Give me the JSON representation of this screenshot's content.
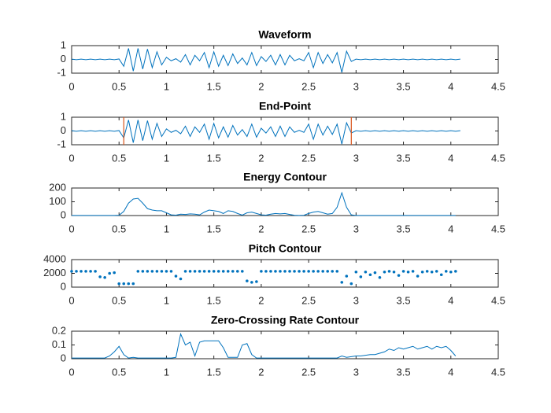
{
  "chart_data": [
    {
      "type": "line",
      "title": "Waveform",
      "color": "#0072bd",
      "x": [
        0,
        0.05,
        0.1,
        0.15,
        0.2,
        0.25,
        0.3,
        0.35,
        0.4,
        0.45,
        0.5,
        0.55,
        0.6,
        0.65,
        0.7,
        0.75,
        0.8,
        0.85,
        0.9,
        0.95,
        1,
        1.05,
        1.1,
        1.15,
        1.2,
        1.25,
        1.3,
        1.35,
        1.4,
        1.45,
        1.5,
        1.55,
        1.6,
        1.65,
        1.7,
        1.75,
        1.8,
        1.85,
        1.9,
        1.95,
        2,
        2.05,
        2.1,
        2.15,
        2.2,
        2.25,
        2.3,
        2.35,
        2.4,
        2.45,
        2.5,
        2.55,
        2.6,
        2.65,
        2.7,
        2.75,
        2.8,
        2.85,
        2.9,
        2.95,
        3,
        3.05,
        3.1,
        3.15,
        3.2,
        3.25,
        3.3,
        3.35,
        3.4,
        3.45,
        3.5,
        3.55,
        3.6,
        3.65,
        3.7,
        3.75,
        3.8,
        3.85,
        3.9,
        3.95,
        4,
        4.05,
        4.1
      ],
      "values": [
        0.02,
        -0.02,
        0.02,
        -0.02,
        0.02,
        -0.02,
        0.02,
        -0.02,
        0.02,
        -0.02,
        0.03,
        -0.5,
        0.8,
        -0.85,
        0.8,
        -0.7,
        0.75,
        -0.6,
        0.55,
        -0.4,
        0.15,
        -0.1,
        0.05,
        -0.2,
        0.35,
        -0.4,
        0.3,
        -0.1,
        0.5,
        -0.6,
        0.55,
        -0.5,
        0.3,
        -0.45,
        0.4,
        -0.3,
        0.1,
        -0.4,
        0.5,
        -0.45,
        0.2,
        -0.15,
        0.3,
        -0.4,
        0.35,
        -0.4,
        0.3,
        -0.1,
        0.05,
        -0.1,
        0.5,
        -0.6,
        0.5,
        -0.3,
        0.35,
        -0.25,
        0.5,
        -0.95,
        0.6,
        -0.15,
        0.02,
        -0.02,
        0.02,
        -0.02,
        0.02,
        -0.02,
        0.02,
        -0.02,
        0.02,
        -0.02,
        0.02,
        -0.02,
        0.02,
        -0.02,
        0.02,
        -0.02,
        0.02,
        -0.02,
        0.02,
        -0.02,
        0.02,
        -0.02,
        0.02
      ],
      "xlim": [
        0,
        4.5
      ],
      "xticks": [
        0,
        0.5,
        1,
        1.5,
        2,
        2.5,
        3,
        3.5,
        4,
        4.5
      ],
      "ylim": [
        -1,
        1
      ],
      "yticks": [
        -1,
        0,
        1
      ]
    },
    {
      "type": "line",
      "title": "End-Point",
      "color": "#0072bd",
      "endpoints": [
        0.55,
        2.95
      ],
      "endpoint_color": "#d95319",
      "x": [
        0,
        0.05,
        0.1,
        0.15,
        0.2,
        0.25,
        0.3,
        0.35,
        0.4,
        0.45,
        0.5,
        0.55,
        0.6,
        0.65,
        0.7,
        0.75,
        0.8,
        0.85,
        0.9,
        0.95,
        1,
        1.05,
        1.1,
        1.15,
        1.2,
        1.25,
        1.3,
        1.35,
        1.4,
        1.45,
        1.5,
        1.55,
        1.6,
        1.65,
        1.7,
        1.75,
        1.8,
        1.85,
        1.9,
        1.95,
        2,
        2.05,
        2.1,
        2.15,
        2.2,
        2.25,
        2.3,
        2.35,
        2.4,
        2.45,
        2.5,
        2.55,
        2.6,
        2.65,
        2.7,
        2.75,
        2.8,
        2.85,
        2.9,
        2.95,
        3,
        3.05,
        3.1,
        3.15,
        3.2,
        3.25,
        3.3,
        3.35,
        3.4,
        3.45,
        3.5,
        3.55,
        3.6,
        3.65,
        3.7,
        3.75,
        3.8,
        3.85,
        3.9,
        3.95,
        4,
        4.05,
        4.1
      ],
      "values": [
        0.02,
        -0.02,
        0.02,
        -0.02,
        0.02,
        -0.02,
        0.02,
        -0.02,
        0.02,
        -0.02,
        0.03,
        -0.5,
        0.8,
        -0.85,
        0.8,
        -0.7,
        0.75,
        -0.6,
        0.55,
        -0.4,
        0.15,
        -0.1,
        0.05,
        -0.2,
        0.35,
        -0.4,
        0.3,
        -0.1,
        0.5,
        -0.6,
        0.55,
        -0.5,
        0.3,
        -0.45,
        0.4,
        -0.3,
        0.1,
        -0.4,
        0.5,
        -0.45,
        0.2,
        -0.15,
        0.3,
        -0.4,
        0.35,
        -0.4,
        0.3,
        -0.1,
        0.05,
        -0.1,
        0.5,
        -0.6,
        0.5,
        -0.3,
        0.35,
        -0.25,
        0.5,
        -0.95,
        0.6,
        -0.15,
        0.02,
        -0.02,
        0.02,
        -0.02,
        0.02,
        -0.02,
        0.02,
        -0.02,
        0.02,
        -0.02,
        0.02,
        -0.02,
        0.02,
        -0.02,
        0.02,
        -0.02,
        0.02,
        -0.02,
        0.02,
        -0.02,
        0.02,
        -0.02,
        0.02
      ],
      "xlim": [
        0,
        4.5
      ],
      "xticks": [
        0,
        0.5,
        1,
        1.5,
        2,
        2.5,
        3,
        3.5,
        4,
        4.5
      ],
      "ylim": [
        -1,
        1
      ],
      "yticks": [
        -1,
        0,
        1
      ]
    },
    {
      "type": "line",
      "title": "Energy Contour",
      "color": "#0072bd",
      "x": [
        0,
        0.05,
        0.1,
        0.15,
        0.2,
        0.25,
        0.3,
        0.35,
        0.4,
        0.45,
        0.5,
        0.55,
        0.6,
        0.65,
        0.7,
        0.75,
        0.8,
        0.85,
        0.9,
        0.95,
        1,
        1.05,
        1.1,
        1.15,
        1.2,
        1.25,
        1.3,
        1.35,
        1.4,
        1.45,
        1.5,
        1.55,
        1.6,
        1.65,
        1.7,
        1.75,
        1.8,
        1.85,
        1.9,
        1.95,
        2,
        2.05,
        2.1,
        2.15,
        2.2,
        2.25,
        2.3,
        2.35,
        2.4,
        2.45,
        2.5,
        2.55,
        2.6,
        2.65,
        2.7,
        2.75,
        2.8,
        2.85,
        2.9,
        2.95,
        3,
        3.05,
        3.1,
        3.15,
        3.2,
        3.25,
        3.3,
        3.35,
        3.4,
        3.45,
        3.5,
        3.55,
        3.6,
        3.65,
        3.7,
        3.75,
        3.8,
        3.85,
        3.9,
        3.95,
        4,
        4.05
      ],
      "values": [
        1,
        1,
        1,
        1,
        1,
        1,
        1,
        1,
        1,
        1,
        2,
        30,
        90,
        120,
        125,
        90,
        50,
        40,
        35,
        35,
        20,
        5,
        3,
        10,
        8,
        12,
        10,
        5,
        25,
        40,
        35,
        30,
        15,
        35,
        30,
        15,
        3,
        20,
        25,
        15,
        5,
        3,
        10,
        15,
        12,
        15,
        8,
        2,
        1,
        2,
        15,
        25,
        30,
        20,
        10,
        15,
        60,
        165,
        60,
        5,
        1,
        1,
        1,
        1,
        1,
        1,
        1,
        1,
        1,
        1,
        1,
        1,
        1,
        1,
        1,
        1,
        1,
        1,
        1,
        1,
        1,
        1
      ],
      "xlim": [
        0,
        4.5
      ],
      "xticks": [
        0,
        0.5,
        1,
        1.5,
        2,
        2.5,
        3,
        3.5,
        4,
        4.5
      ],
      "ylim": [
        0,
        200
      ],
      "yticks": [
        0,
        100,
        200
      ]
    },
    {
      "type": "scatter",
      "title": "Pitch Contour",
      "color": "#0072bd",
      "x": [
        0,
        0.05,
        0.1,
        0.15,
        0.2,
        0.25,
        0.3,
        0.35,
        0.4,
        0.45,
        0.5,
        0.55,
        0.6,
        0.65,
        0.7,
        0.75,
        0.8,
        0.85,
        0.9,
        0.95,
        1,
        1.05,
        1.1,
        1.15,
        1.2,
        1.25,
        1.3,
        1.35,
        1.4,
        1.45,
        1.5,
        1.55,
        1.6,
        1.65,
        1.7,
        1.75,
        1.8,
        1.85,
        1.9,
        1.95,
        2,
        2.05,
        2.1,
        2.15,
        2.2,
        2.25,
        2.3,
        2.35,
        2.4,
        2.45,
        2.5,
        2.55,
        2.6,
        2.65,
        2.7,
        2.75,
        2.8,
        2.85,
        2.9,
        2.95,
        3,
        3.05,
        3.1,
        3.15,
        3.2,
        3.25,
        3.3,
        3.35,
        3.4,
        3.45,
        3.5,
        3.55,
        3.6,
        3.65,
        3.7,
        3.75,
        3.8,
        3.85,
        3.9,
        3.95,
        4,
        4.05
      ],
      "values": [
        2300,
        2300,
        2300,
        2300,
        2300,
        2300,
        1500,
        1400,
        2000,
        2100,
        500,
        500,
        500,
        500,
        2300,
        2300,
        2300,
        2300,
        2300,
        2300,
        2300,
        2300,
        1600,
        1200,
        2300,
        2300,
        2300,
        2300,
        2300,
        2300,
        2300,
        2300,
        2300,
        2300,
        2300,
        2300,
        2300,
        900,
        700,
        800,
        2300,
        2300,
        2300,
        2300,
        2300,
        2300,
        2300,
        2300,
        2300,
        2300,
        2300,
        2300,
        2300,
        2300,
        2300,
        2300,
        2300,
        700,
        1600,
        500,
        2200,
        1500,
        2200,
        1800,
        2100,
        1400,
        2200,
        2300,
        2200,
        1700,
        2300,
        2200,
        2300,
        1600,
        2200,
        2300,
        2200,
        2300,
        1800,
        2300,
        2200,
        2300
      ],
      "xlim": [
        0,
        4.5
      ],
      "xticks": [
        0,
        0.5,
        1,
        1.5,
        2,
        2.5,
        3,
        3.5,
        4,
        4.5
      ],
      "ylim": [
        0,
        4000
      ],
      "yticks": [
        0,
        2000,
        4000
      ]
    },
    {
      "type": "line",
      "title": "Zero-Crossing Rate Contour",
      "color": "#0072bd",
      "x": [
        0,
        0.05,
        0.1,
        0.15,
        0.2,
        0.25,
        0.3,
        0.35,
        0.4,
        0.45,
        0.5,
        0.55,
        0.6,
        0.65,
        0.7,
        0.75,
        0.8,
        0.85,
        0.9,
        0.95,
        1,
        1.05,
        1.1,
        1.15,
        1.2,
        1.25,
        1.3,
        1.35,
        1.4,
        1.45,
        1.5,
        1.55,
        1.6,
        1.65,
        1.7,
        1.75,
        1.8,
        1.85,
        1.9,
        1.95,
        2,
        2.05,
        2.1,
        2.15,
        2.2,
        2.25,
        2.3,
        2.35,
        2.4,
        2.45,
        2.5,
        2.55,
        2.6,
        2.65,
        2.7,
        2.75,
        2.8,
        2.85,
        2.9,
        2.95,
        3,
        3.05,
        3.1,
        3.15,
        3.2,
        3.25,
        3.3,
        3.35,
        3.4,
        3.45,
        3.5,
        3.55,
        3.6,
        3.65,
        3.7,
        3.75,
        3.8,
        3.85,
        3.9,
        3.95,
        4,
        4.05
      ],
      "values": [
        0.005,
        0.005,
        0.005,
        0.005,
        0.005,
        0.005,
        0.005,
        0.005,
        0.02,
        0.05,
        0.09,
        0.03,
        0.005,
        0.01,
        0.005,
        0.005,
        0.005,
        0.005,
        0.005,
        0.005,
        0.005,
        0.005,
        0.01,
        0.18,
        0.1,
        0.12,
        0.02,
        0.12,
        0.13,
        0.13,
        0.13,
        0.13,
        0.08,
        0.01,
        0.01,
        0.01,
        0.1,
        0.11,
        0.03,
        0.005,
        0.005,
        0.005,
        0.005,
        0.005,
        0.005,
        0.005,
        0.005,
        0.005,
        0.005,
        0.005,
        0.005,
        0.005,
        0.005,
        0.005,
        0.005,
        0.005,
        0.005,
        0.02,
        0.01,
        0.015,
        0.02,
        0.02,
        0.025,
        0.03,
        0.03,
        0.04,
        0.05,
        0.07,
        0.06,
        0.08,
        0.07,
        0.08,
        0.09,
        0.07,
        0.08,
        0.09,
        0.07,
        0.09,
        0.08,
        0.09,
        0.06,
        0.02
      ],
      "xlim": [
        0,
        4.5
      ],
      "xticks": [
        0,
        0.5,
        1,
        1.5,
        2,
        2.5,
        3,
        3.5,
        4,
        4.5
      ],
      "ylim": [
        0,
        0.2
      ],
      "yticks": [
        0,
        0.1,
        0.2
      ]
    }
  ]
}
